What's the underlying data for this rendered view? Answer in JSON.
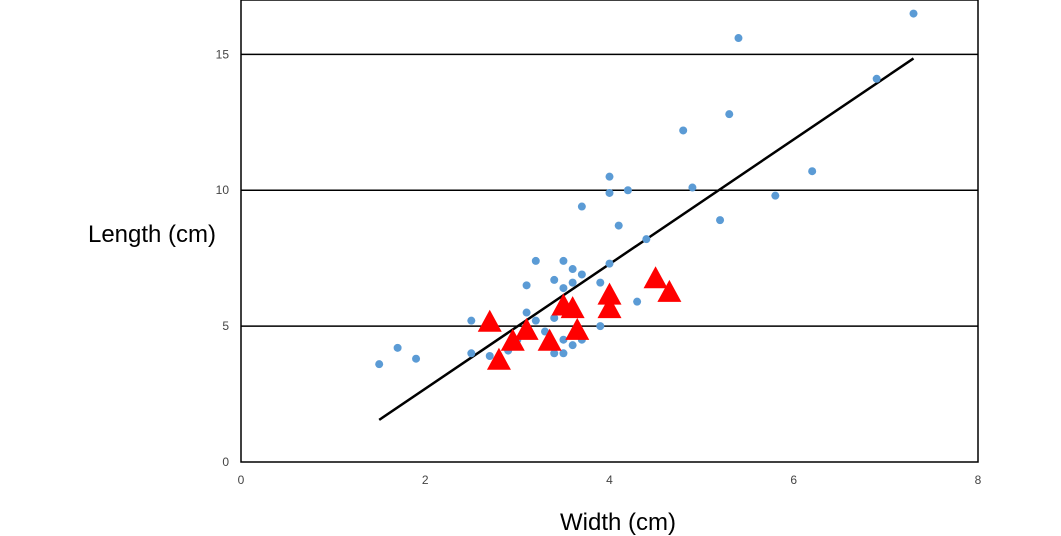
{
  "chart_data": {
    "type": "scatter",
    "title": "",
    "xlabel": "Width (cm)",
    "ylabel": "Length (cm)",
    "xlim": [
      0,
      8
    ],
    "ylim": [
      0,
      17
    ],
    "xticks": [
      "0",
      "2",
      "4",
      "6",
      "8"
    ],
    "yticks": [
      "0",
      "5",
      "10",
      "15"
    ],
    "horizontal_grid": true,
    "legend": "none",
    "series": [
      {
        "marker": "circle",
        "color": "#5b9bd5",
        "points": [
          [
            1.5,
            3.6
          ],
          [
            1.7,
            4.2
          ],
          [
            1.9,
            3.8
          ],
          [
            2.5,
            4.0
          ],
          [
            2.5,
            5.2
          ],
          [
            2.7,
            3.9
          ],
          [
            2.9,
            4.1
          ],
          [
            3.0,
            4.5
          ],
          [
            3.1,
            6.5
          ],
          [
            3.1,
            5.5
          ],
          [
            3.2,
            7.4
          ],
          [
            3.2,
            5.2
          ],
          [
            3.3,
            4.8
          ],
          [
            3.4,
            6.7
          ],
          [
            3.4,
            5.3
          ],
          [
            3.4,
            4.0
          ],
          [
            3.5,
            7.4
          ],
          [
            3.5,
            6.4
          ],
          [
            3.5,
            4.5
          ],
          [
            3.5,
            4.0
          ],
          [
            3.6,
            7.1
          ],
          [
            3.6,
            6.6
          ],
          [
            3.6,
            4.3
          ],
          [
            3.7,
            9.4
          ],
          [
            3.7,
            6.9
          ],
          [
            3.7,
            4.5
          ],
          [
            3.9,
            6.6
          ],
          [
            3.9,
            5.0
          ],
          [
            4.0,
            10.5
          ],
          [
            4.0,
            9.9
          ],
          [
            4.0,
            7.3
          ],
          [
            4.1,
            8.7
          ],
          [
            4.2,
            10.0
          ],
          [
            4.3,
            5.9
          ],
          [
            4.4,
            8.2
          ],
          [
            4.8,
            12.2
          ],
          [
            4.9,
            10.1
          ],
          [
            5.2,
            8.9
          ],
          [
            5.3,
            12.8
          ],
          [
            5.4,
            15.6
          ],
          [
            5.8,
            9.8
          ],
          [
            6.2,
            10.7
          ],
          [
            6.9,
            14.1
          ],
          [
            7.3,
            16.5
          ]
        ]
      },
      {
        "marker": "triangle",
        "color": "#ff0000",
        "points": [
          [
            2.7,
            5.1
          ],
          [
            2.8,
            3.7
          ],
          [
            2.95,
            4.4
          ],
          [
            3.1,
            4.8
          ],
          [
            3.35,
            4.4
          ],
          [
            3.5,
            5.7
          ],
          [
            3.6,
            5.6
          ],
          [
            3.65,
            4.8
          ],
          [
            4.0,
            6.1
          ],
          [
            4.0,
            5.6
          ],
          [
            4.5,
            6.7
          ],
          [
            4.65,
            6.2
          ]
        ]
      }
    ],
    "trendline": {
      "type": "linear",
      "x": [
        1.5,
        7.3
      ],
      "y": [
        1.55,
        14.85
      ],
      "color": "#000000"
    }
  }
}
